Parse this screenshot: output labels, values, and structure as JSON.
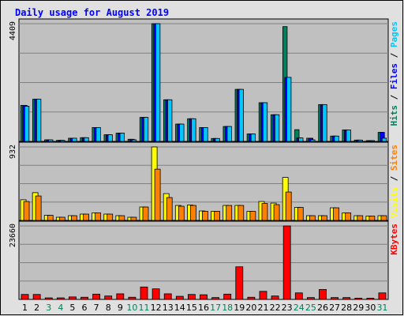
{
  "chart_data": {
    "type": "bar",
    "title": "Daily usage for August 2019",
    "categories": [
      "1",
      "2",
      "3",
      "4",
      "5",
      "6",
      "7",
      "8",
      "9",
      "10",
      "11",
      "12",
      "13",
      "14",
      "15",
      "16",
      "17",
      "18",
      "19",
      "20",
      "21",
      "22",
      "23",
      "24",
      "25",
      "26",
      "27",
      "28",
      "29",
      "30",
      "31"
    ],
    "weekend_categories": [
      "3",
      "4",
      "10",
      "11",
      "17",
      "18",
      "24",
      "25",
      "31"
    ],
    "colors": {
      "hits": "#00805c",
      "files": "#0000ff",
      "pages": "#00c8ff",
      "visits": "#ffff00",
      "sites": "#ff8000",
      "kbytes": "#ff0000",
      "title": "#0000ff",
      "weekday_label": "#000000",
      "weekend_label": "#00805c",
      "panel_bg": "#c0c0c0",
      "page_bg": "#e0e0e0"
    },
    "panels": [
      {
        "name": "hits-files-pages",
        "max_label": "4409",
        "ylim": [
          0,
          4409
        ],
        "legend": [
          {
            "text": "Hits",
            "color": "#00805c"
          },
          {
            "text": "Files",
            "color": "#0000ff"
          },
          {
            "text": "Pages",
            "color": "#00c8ff"
          }
        ],
        "series": [
          {
            "name": "Hits",
            "color": "#00805c",
            "values": [
              1350,
              1580,
              60,
              40,
              120,
              140,
              520,
              250,
              310,
              80,
              900,
              4409,
              1560,
              650,
              850,
              520,
              110,
              560,
              1950,
              280,
              1450,
              1000,
              4300,
              440,
              120,
              1380,
              200,
              430,
              50,
              30,
              340
            ]
          },
          {
            "name": "Files",
            "color": "#0000ff",
            "values": [
              1350,
              1580,
              60,
              40,
              120,
              140,
              520,
              250,
              310,
              80,
              900,
              4409,
              1560,
              650,
              850,
              520,
              110,
              560,
              1950,
              280,
              1450,
              1000,
              2400,
              130,
              120,
              1380,
              200,
              430,
              50,
              30,
              340
            ]
          },
          {
            "name": "Pages",
            "color": "#00c8ff",
            "values": [
              1320,
              1580,
              60,
              40,
              120,
              140,
              520,
              250,
              310,
              60,
              900,
              4409,
              1560,
              650,
              850,
              520,
              110,
              560,
              1950,
              280,
              1450,
              1000,
              2400,
              130,
              60,
              1380,
              200,
              430,
              50,
              30,
              120
            ]
          }
        ]
      },
      {
        "name": "visits-sites",
        "max_label": "932",
        "ylim": [
          0,
          932
        ],
        "legend": [
          {
            "text": "Visits",
            "color": "#ffff00"
          },
          {
            "text": "Sites",
            "color": "#ff8000"
          }
        ],
        "series": [
          {
            "name": "Visits",
            "color": "#ffff00",
            "values": [
              262,
              352,
              65,
              40,
              60,
              80,
              95,
              80,
              60,
              40,
              170,
              932,
              340,
              190,
              195,
              120,
              115,
              190,
              190,
              115,
              240,
              220,
              545,
              165,
              60,
              60,
              160,
              95,
              60,
              55,
              60
            ]
          },
          {
            "name": "Sites",
            "color": "#ff8000",
            "values": [
              240,
              310,
              65,
              40,
              60,
              80,
              95,
              80,
              60,
              40,
              170,
              650,
              290,
              180,
              190,
              115,
              115,
              190,
              190,
              115,
              215,
              200,
              360,
              165,
              60,
              60,
              160,
              95,
              60,
              55,
              60
            ]
          }
        ]
      },
      {
        "name": "kbytes",
        "max_label": "23660",
        "ylim": [
          0,
          23660
        ],
        "legend": [
          {
            "text": "KBytes",
            "color": "#ff0000"
          }
        ],
        "series": [
          {
            "name": "KBytes",
            "color": "#ff0000",
            "values": [
              1600,
              1600,
              500,
              500,
              800,
              700,
              1700,
              1100,
              1800,
              700,
              4000,
              3400,
              1800,
              1000,
              1600,
              1500,
              600,
              1700,
              10500,
              700,
              2600,
              1100,
              23660,
              2100,
              600,
              3200,
              600,
              600,
              400,
              400,
              2100
            ]
          }
        ]
      }
    ]
  }
}
